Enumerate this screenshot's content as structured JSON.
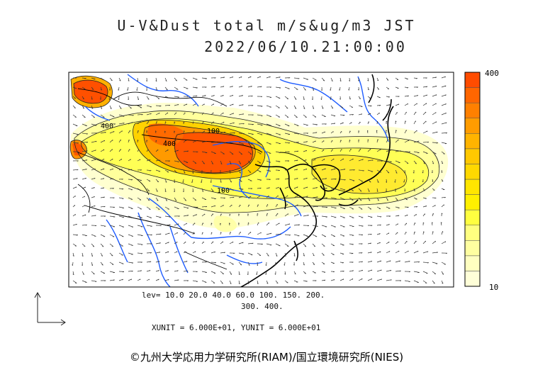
{
  "title": {
    "line1": "U-V&Dust total m/s&ug/m3 JST",
    "line2": "2022/06/10.21:00:00"
  },
  "legend": {
    "max_label": "400",
    "min_label": "10",
    "colors": [
      "#ffffd8",
      "#ffffc0",
      "#ffffa0",
      "#ffff80",
      "#ffff40",
      "#fff000",
      "#ffe600",
      "#ffd800",
      "#ffc800",
      "#ffb400",
      "#ff9c00",
      "#ff8000",
      "#ff6600",
      "#ff4c00"
    ]
  },
  "levels": {
    "line1": "lev= 10.0 20.0 40.0 60.0 100. 150. 200.",
    "line2": "300. 400."
  },
  "contour_labels": [
    "400",
    "100",
    "100",
    "400"
  ],
  "units": "XUNIT = 6.000E+01, YUNIT = 6.000E+01",
  "copyright": "©九州大学応用力学研究所(RIAM)/国立環境研究所(NIES)"
}
